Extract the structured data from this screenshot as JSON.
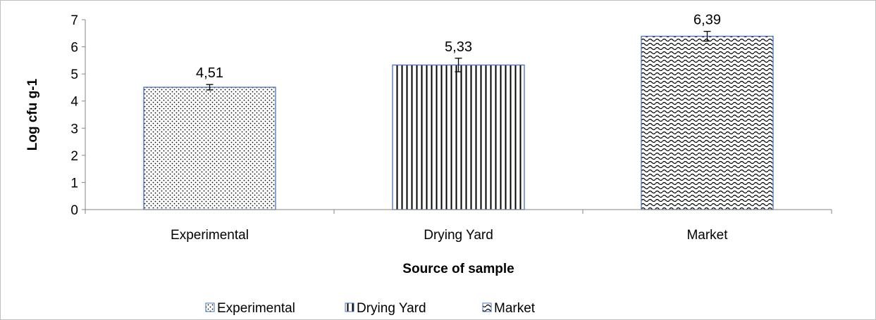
{
  "chart_data": {
    "type": "bar",
    "title": "",
    "xlabel": "Source of sample",
    "ylabel": "Log cfu g-1",
    "categories": [
      "Experimental",
      "Drying Yard",
      "Market"
    ],
    "values": [
      4.51,
      5.33,
      6.39
    ],
    "data_labels": [
      "4,51",
      "5,33",
      "6,39"
    ],
    "error_bars": [
      0.1,
      0.25,
      0.18
    ],
    "ylim": [
      0,
      7
    ],
    "yticks": [
      "0",
      "1",
      "2",
      "3",
      "4",
      "5",
      "6",
      "7"
    ],
    "grid": false,
    "legend_position": "bottom",
    "legend": [
      "Experimental",
      "Drying Yard",
      "Market"
    ],
    "patterns": [
      "dots",
      "vertical-lines",
      "waves"
    ],
    "colors": {
      "bar_border": "#4472c4",
      "pattern": "#000000",
      "axis": "#868686",
      "frame": "#bfbfbf"
    }
  }
}
